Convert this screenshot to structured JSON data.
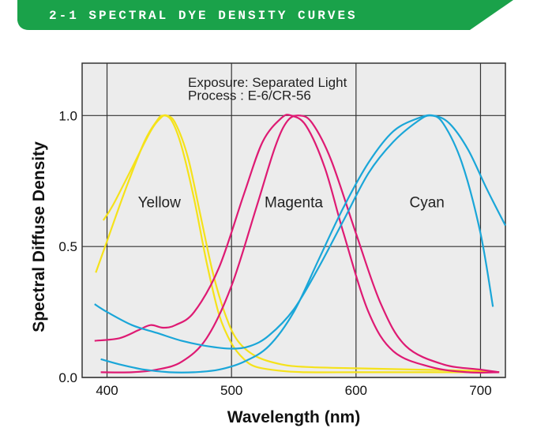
{
  "banner": {
    "text": "2-1 SPECTRAL DYE DENSITY CURVES",
    "color": "#1aa24a"
  },
  "chart_data": {
    "type": "line",
    "title": "",
    "xlabel": "Wavelength (nm)",
    "ylabel": "Spectral Diffuse Density",
    "xlim": [
      380,
      720
    ],
    "ylim": [
      0,
      1.2
    ],
    "x_ticks": [
      400,
      500,
      600,
      700
    ],
    "x_tick_labels": [
      "400",
      "500",
      "600",
      "700"
    ],
    "y_ticks": [
      0,
      0.5,
      1
    ],
    "y_tick_labels": [
      "0.0",
      "0.5",
      "1.0"
    ],
    "grid": true,
    "legend": "none",
    "annotations": [
      {
        "text": "Exposure: Separated Light",
        "x": 465,
        "y": 1.11
      },
      {
        "text": "Process   : E-6/CR-56",
        "x": 465,
        "y": 1.06
      }
    ],
    "series_labels": [
      {
        "text": "Yellow",
        "x": 442,
        "y": 0.65
      },
      {
        "text": "Magenta",
        "x": 550,
        "y": 0.65
      },
      {
        "text": "Cyan",
        "x": 657,
        "y": 0.65
      }
    ],
    "series": [
      {
        "label": "Yellow",
        "color": "#f5e21a",
        "x": [
          391,
          400,
          415,
          430,
          440,
          445,
          452,
          460,
          470,
          480,
          490,
          500,
          510,
          520,
          540,
          560,
          600,
          650,
          700,
          715
        ],
        "y": [
          0.4,
          0.52,
          0.72,
          0.9,
          0.98,
          1.0,
          0.98,
          0.88,
          0.68,
          0.44,
          0.24,
          0.13,
          0.07,
          0.04,
          0.025,
          0.02,
          0.02,
          0.02,
          0.02,
          0.02
        ]
      },
      {
        "label": "Yellow",
        "color": "#f5e21a",
        "x": [
          397,
          405,
          420,
          435,
          443,
          448,
          455,
          465,
          475,
          485,
          495,
          505,
          520,
          540,
          560,
          600,
          650,
          700,
          715
        ],
        "y": [
          0.6,
          0.66,
          0.8,
          0.94,
          0.99,
          1.0,
          0.97,
          0.84,
          0.62,
          0.4,
          0.24,
          0.14,
          0.08,
          0.05,
          0.04,
          0.035,
          0.03,
          0.025,
          0.02
        ]
      },
      {
        "label": "Magenta",
        "color": "#de1a73",
        "x": [
          390,
          410,
          425,
          435,
          445,
          455,
          470,
          490,
          510,
          525,
          540,
          548,
          560,
          575,
          590,
          610,
          630,
          660,
          690,
          715
        ],
        "y": [
          0.14,
          0.15,
          0.18,
          0.2,
          0.19,
          0.2,
          0.25,
          0.42,
          0.7,
          0.9,
          0.99,
          1.0,
          0.96,
          0.8,
          0.55,
          0.25,
          0.1,
          0.04,
          0.02,
          0.02
        ]
      },
      {
        "label": "Magenta",
        "color": "#de1a73",
        "x": [
          395,
          420,
          440,
          460,
          480,
          500,
          520,
          535,
          545,
          555,
          565,
          580,
          600,
          620,
          640,
          670,
          700,
          715
        ],
        "y": [
          0.02,
          0.02,
          0.03,
          0.06,
          0.15,
          0.35,
          0.65,
          0.88,
          0.98,
          1.0,
          0.97,
          0.83,
          0.55,
          0.28,
          0.12,
          0.05,
          0.03,
          0.02
        ]
      },
      {
        "label": "Cyan",
        "color": "#1aa6d8",
        "x": [
          390,
          400,
          420,
          440,
          460,
          480,
          500,
          515,
          530,
          550,
          570,
          590,
          610,
          630,
          650,
          660,
          670,
          685,
          700,
          710
        ],
        "y": [
          0.28,
          0.25,
          0.2,
          0.17,
          0.14,
          0.12,
          0.11,
          0.12,
          0.16,
          0.26,
          0.42,
          0.6,
          0.78,
          0.9,
          0.98,
          1.0,
          0.97,
          0.82,
          0.55,
          0.27
        ]
      },
      {
        "label": "Cyan",
        "color": "#1aa6d8",
        "x": [
          395,
          410,
          430,
          450,
          470,
          490,
          510,
          530,
          550,
          570,
          590,
          610,
          630,
          650,
          662,
          675,
          690,
          705,
          720
        ],
        "y": [
          0.07,
          0.05,
          0.03,
          0.02,
          0.02,
          0.03,
          0.06,
          0.12,
          0.25,
          0.45,
          0.65,
          0.82,
          0.94,
          0.99,
          1.0,
          0.97,
          0.87,
          0.72,
          0.58
        ]
      }
    ]
  }
}
